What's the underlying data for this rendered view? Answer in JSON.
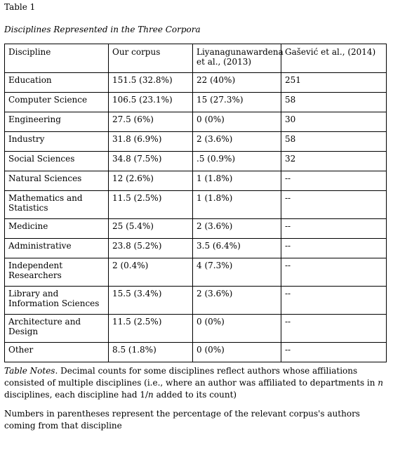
{
  "table_label": "Table 1",
  "table_title": "Disciplines Represented in the Three Corpora",
  "columns": [
    "Discipline",
    "Our corpus",
    "Liyanagunawardena et al., (2013)",
    "Gašević et al., (2014)"
  ],
  "rows": [
    [
      "Education",
      "151.5 (32.8%)",
      "22 (40%)",
      "251"
    ],
    [
      "Computer Science",
      "106.5 (23.1%)",
      "15 (27.3%)",
      "58"
    ],
    [
      "Engineering",
      "27.5 (6%)",
      "0 (0%)",
      "30"
    ],
    [
      "Industry",
      "31.8 (6.9%)",
      "2 (3.6%)",
      "58"
    ],
    [
      "Social Sciences",
      "34.8 (7.5%)",
      ".5 (0.9%)",
      "32"
    ],
    [
      "Natural Sciences",
      "12 (2.6%)",
      "1 (1.8%)",
      "--"
    ],
    [
      "Mathematics and Statistics",
      "11.5 (2.5%)",
      "1 (1.8%)",
      "--"
    ],
    [
      "Medicine",
      "25 (5.4%)",
      "2 (3.6%)",
      "--"
    ],
    [
      "Administrative",
      "23.8 (5.2%)",
      "3.5 (6.4%)",
      "--"
    ],
    [
      "Independent Researchers",
      "2 (0.4%)",
      "4 (7.3%)",
      "--"
    ],
    [
      "Library and Information Sciences",
      "15.5 (3.4%)",
      "2 (3.6%)",
      "--"
    ],
    [
      "Architecture and Design",
      "11.5 (2.5%)",
      "0 (0%)",
      "--"
    ],
    [
      "Other",
      "8.5 (1.8%)",
      "0 (0%)",
      "--"
    ]
  ],
  "notes": {
    "lead": "Table Notes",
    "text_1": ". Decimal counts for some disciplines reflect authors whose affiliations consisted of multiple disciplines (i.e., where an author was affiliated to departments in ",
    "var_n_1": "n",
    "text_2": " disciplines, each discipline had 1/",
    "var_n_2": "n",
    "text_3": " added to its count)",
    "second": "Numbers in parentheses represent the percentage of the relevant corpus's authors coming from that discipline"
  }
}
